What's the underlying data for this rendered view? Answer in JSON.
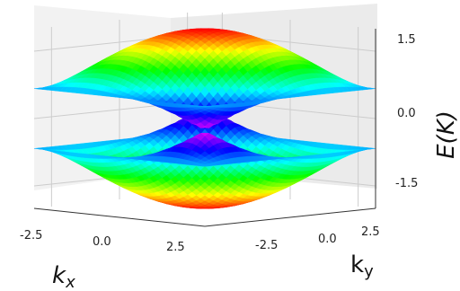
{
  "chart_data": {
    "type": "surface3d",
    "title": "",
    "xlabel": "k_x",
    "ylabel": "k_y",
    "zlabel": "E(K)",
    "x_ticks": [
      "-2.5",
      "0.0",
      "2.5"
    ],
    "y_ticks": [
      "-2.5",
      "0.0",
      "2.5"
    ],
    "z_ticks": [
      "1.5",
      "0.0",
      "-1.5"
    ],
    "xlim": [
      -3.14,
      3.14
    ],
    "ylim": [
      -3.14,
      3.14
    ],
    "zlim": [
      -2.0,
      2.0
    ],
    "grid": true,
    "colormap": "hsv",
    "series": [
      {
        "values": {
          "dirac_point_energy": 0.0,
          "max_energy": 2.0
        }
      },
      {
        "values": {
          "dirac_point_energy": 0.0,
          "min_energy": -2.0
        }
      }
    ]
  }
}
